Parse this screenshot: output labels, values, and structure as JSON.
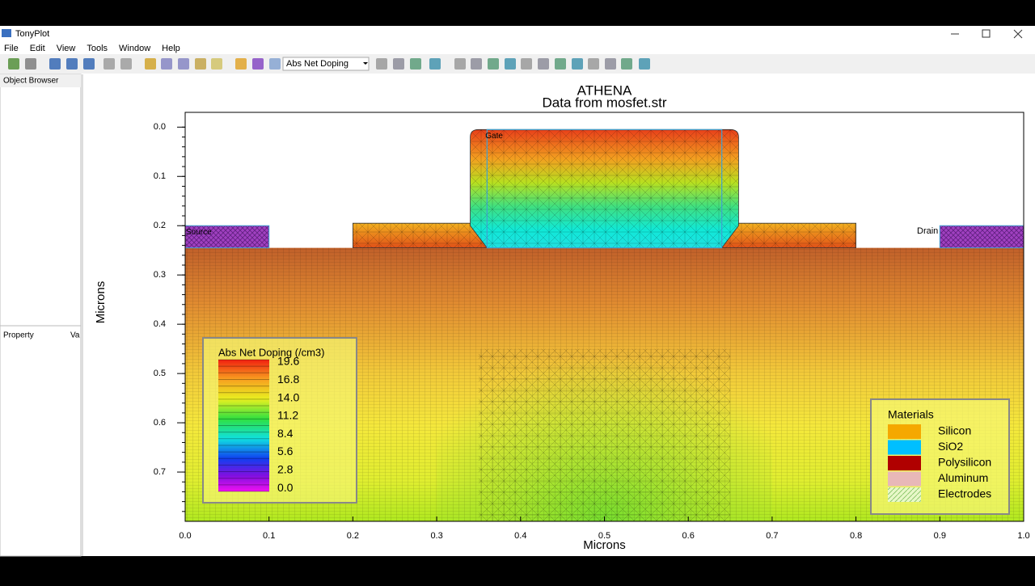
{
  "window": {
    "title": "TonyPlot",
    "menu": [
      "File",
      "Edit",
      "View",
      "Tools",
      "Window",
      "Help"
    ]
  },
  "toolbar": {
    "dropdown": "Abs Net Doping"
  },
  "panels": {
    "object_browser": "Object Browser",
    "property": "Property",
    "value": "Va"
  },
  "plot": {
    "title": "ATHENA",
    "subtitle": "Data from mosfet.str",
    "xlabel": "Microns",
    "ylabel": "Microns",
    "xlim": [
      0,
      1
    ],
    "ylim": [
      -0.03,
      0.8
    ],
    "xticks": [
      {
        "value": 0,
        "label": "0.0"
      },
      {
        "value": 0.1,
        "label": "0.1"
      },
      {
        "value": 0.2,
        "label": "0.2"
      },
      {
        "value": 0.3,
        "label": "0.3"
      },
      {
        "value": 0.4,
        "label": "0.4"
      },
      {
        "value": 0.5,
        "label": "0.5"
      },
      {
        "value": 0.6,
        "label": "0.6"
      },
      {
        "value": 0.7,
        "label": "0.7"
      },
      {
        "value": 0.8,
        "label": "0.8"
      },
      {
        "value": 0.9,
        "label": "0.9"
      },
      {
        "value": 1,
        "label": "1.0"
      }
    ],
    "yticks": [
      {
        "value": 0,
        "label": "0.0"
      },
      {
        "value": 0.1,
        "label": "0.1"
      },
      {
        "value": 0.2,
        "label": "0.2"
      },
      {
        "value": 0.3,
        "label": "0.3"
      },
      {
        "value": 0.4,
        "label": "0.4"
      },
      {
        "value": 0.5,
        "label": "0.5"
      },
      {
        "value": 0.6,
        "label": "0.6"
      },
      {
        "value": 0.7,
        "label": "0.7"
      }
    ],
    "electrodes": [
      "Source",
      "Gate",
      "Drain"
    ],
    "doping_legend": {
      "title": "Abs Net Doping (/cm3)",
      "labels": [
        "19.6",
        "16.8",
        "14.0",
        "11.2",
        "8.4",
        "5.6",
        "2.8",
        "0.0"
      ]
    },
    "materials_legend": {
      "title": "Materials",
      "items": [
        {
          "name": "Silicon",
          "color": "#f5a800"
        },
        {
          "name": "SiO2",
          "color": "#00bfff"
        },
        {
          "name": "Polysilicon",
          "color": "#b00000"
        },
        {
          "name": "Aluminum",
          "color": "#e8b8b8"
        },
        {
          "name": "Electrodes",
          "color": "#c8f0a0"
        }
      ]
    }
  }
}
